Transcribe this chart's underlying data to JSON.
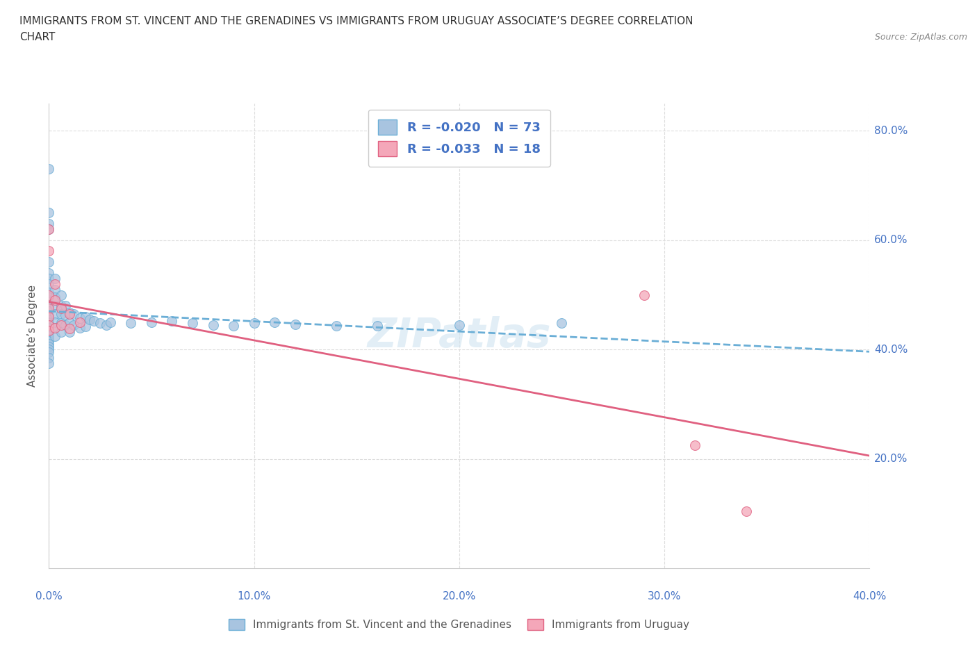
{
  "title_line1": "IMMIGRANTS FROM ST. VINCENT AND THE GRENADINES VS IMMIGRANTS FROM URUGUAY ASSOCIATE’S DEGREE CORRELATION",
  "title_line2": "CHART",
  "source_text": "Source: ZipAtlas.com",
  "ylabel": "Associate’s Degree",
  "xlim": [
    0.0,
    0.4
  ],
  "ylim": [
    0.0,
    0.85
  ],
  "ytick_vals": [
    0.2,
    0.4,
    0.6,
    0.8
  ],
  "ytick_labels": [
    "20.0%",
    "40.0%",
    "60.0%",
    "80.0%"
  ],
  "blue_color": "#a8c4e0",
  "pink_color": "#f4a7b9",
  "trendline_blue_color": "#6aaed6",
  "trendline_pink_color": "#e06080",
  "legend_text_color": "#4472c4",
  "R_blue": -0.02,
  "N_blue": 73,
  "R_pink": -0.033,
  "N_pink": 18,
  "blue_scatter_x": [
    0.0,
    0.0,
    0.0,
    0.0,
    0.0,
    0.0,
    0.0,
    0.0,
    0.0,
    0.0,
    0.0,
    0.0,
    0.0,
    0.0,
    0.0,
    0.0,
    0.0,
    0.0,
    0.0,
    0.0,
    0.0,
    0.0,
    0.0,
    0.0,
    0.0,
    0.0,
    0.0,
    0.0,
    0.0,
    0.0,
    0.003,
    0.003,
    0.003,
    0.003,
    0.003,
    0.003,
    0.003,
    0.003,
    0.006,
    0.006,
    0.006,
    0.006,
    0.006,
    0.008,
    0.008,
    0.008,
    0.01,
    0.01,
    0.01,
    0.012,
    0.012,
    0.015,
    0.015,
    0.018,
    0.018,
    0.02,
    0.022,
    0.025,
    0.028,
    0.03,
    0.04,
    0.05,
    0.06,
    0.07,
    0.08,
    0.09,
    0.1,
    0.11,
    0.12,
    0.14,
    0.16,
    0.2,
    0.25
  ],
  "blue_scatter_y": [
    0.73,
    0.65,
    0.63,
    0.62,
    0.56,
    0.54,
    0.53,
    0.52,
    0.505,
    0.495,
    0.48,
    0.47,
    0.46,
    0.455,
    0.45,
    0.448,
    0.445,
    0.443,
    0.44,
    0.435,
    0.43,
    0.425,
    0.42,
    0.415,
    0.41,
    0.405,
    0.4,
    0.395,
    0.385,
    0.375,
    0.53,
    0.51,
    0.495,
    0.48,
    0.465,
    0.45,
    0.44,
    0.425,
    0.5,
    0.48,
    0.465,
    0.448,
    0.432,
    0.48,
    0.462,
    0.445,
    0.468,
    0.45,
    0.432,
    0.465,
    0.445,
    0.458,
    0.44,
    0.46,
    0.442,
    0.455,
    0.452,
    0.448,
    0.445,
    0.45,
    0.448,
    0.45,
    0.452,
    0.448,
    0.445,
    0.443,
    0.448,
    0.45,
    0.446,
    0.443,
    0.444,
    0.445,
    0.448
  ],
  "pink_scatter_x": [
    0.0,
    0.0,
    0.0,
    0.0,
    0.0,
    0.0,
    0.0,
    0.003,
    0.003,
    0.003,
    0.006,
    0.006,
    0.01,
    0.01,
    0.015,
    0.29,
    0.315,
    0.34
  ],
  "pink_scatter_y": [
    0.62,
    0.58,
    0.5,
    0.475,
    0.46,
    0.445,
    0.435,
    0.52,
    0.49,
    0.44,
    0.475,
    0.445,
    0.465,
    0.438,
    0.45,
    0.5,
    0.225,
    0.105
  ],
  "background_color": "#ffffff",
  "watermark_text": "ZIPatlas",
  "bottom_legend_labels": [
    "Immigrants from St. Vincent and the Grenadines",
    "Immigrants from Uruguay"
  ],
  "grid_color": "#dddddd",
  "axis_text_color": "#4472c4",
  "tick_label_color": "#4472c4"
}
